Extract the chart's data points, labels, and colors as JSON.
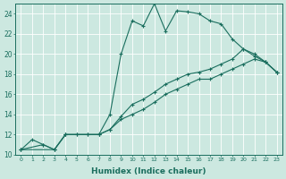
{
  "xlabel": "Humidex (Indice chaleur)",
  "bg_color": "#cce8e0",
  "line_color": "#1a6e5e",
  "xlim": [
    -0.5,
    23.5
  ],
  "ylim": [
    10,
    25
  ],
  "yticks": [
    10,
    12,
    14,
    16,
    18,
    20,
    22,
    24
  ],
  "xticks": [
    0,
    1,
    2,
    3,
    4,
    5,
    6,
    7,
    8,
    9,
    10,
    11,
    12,
    13,
    14,
    15,
    16,
    17,
    18,
    19,
    20,
    21,
    22,
    23
  ],
  "series": [
    {
      "x": [
        0,
        1,
        2,
        3,
        4,
        5,
        6,
        7,
        8,
        9,
        10,
        11,
        12,
        13,
        14,
        15,
        16,
        17,
        18,
        19,
        20,
        21,
        22,
        23
      ],
      "y": [
        10.5,
        11.5,
        11.0,
        10.5,
        12.0,
        12.0,
        12.0,
        12.0,
        14.0,
        20.0,
        23.3,
        22.8,
        25.0,
        22.3,
        24.3,
        24.2,
        24.0,
        23.3,
        23.0,
        21.5,
        20.5,
        19.8,
        19.2,
        18.2
      ]
    },
    {
      "x": [
        0,
        3,
        4,
        7,
        8,
        9,
        10,
        11,
        12,
        13,
        14,
        15,
        16,
        17,
        18,
        19,
        20,
        21,
        22,
        23
      ],
      "y": [
        10.5,
        10.5,
        12.0,
        12.0,
        12.5,
        13.8,
        15.0,
        15.5,
        16.2,
        17.0,
        17.5,
        18.0,
        18.2,
        18.5,
        19.0,
        19.5,
        20.5,
        20.0,
        19.2,
        18.2
      ]
    },
    {
      "x": [
        0,
        2,
        3,
        4,
        5,
        6,
        7,
        8,
        9,
        10,
        11,
        12,
        13,
        14,
        15,
        16,
        17,
        18,
        19,
        20,
        21,
        22,
        23
      ],
      "y": [
        10.5,
        11.0,
        10.5,
        12.0,
        12.0,
        12.0,
        12.0,
        12.5,
        13.5,
        14.0,
        14.5,
        15.2,
        16.0,
        16.5,
        17.0,
        17.5,
        17.5,
        18.0,
        18.5,
        19.0,
        19.5,
        19.2,
        18.2
      ]
    }
  ]
}
